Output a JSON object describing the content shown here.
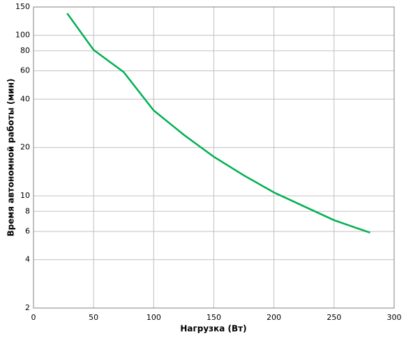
{
  "chart_data": {
    "type": "line",
    "x_label": "Нагрузка (Вт)",
    "y_label": "Время автономной работы (мин)",
    "x": [
      28,
      50,
      75,
      100,
      125,
      150,
      175,
      200,
      225,
      250,
      270,
      280
    ],
    "series": [
      {
        "color": "#00b050",
        "values": [
          137,
          81,
          59,
          34,
          24,
          17.5,
          13.4,
          10.5,
          8.6,
          7.05,
          6.25,
          5.9
        ]
      }
    ],
    "xlim": [
      0,
      300
    ],
    "xticks": [
      0,
      50,
      100,
      150,
      200,
      250,
      300
    ],
    "ylim": [
      2,
      150
    ],
    "yticks": [
      2,
      4,
      6,
      8,
      10,
      20,
      40,
      60,
      80,
      100,
      150
    ],
    "y_log": true,
    "grid": true
  }
}
